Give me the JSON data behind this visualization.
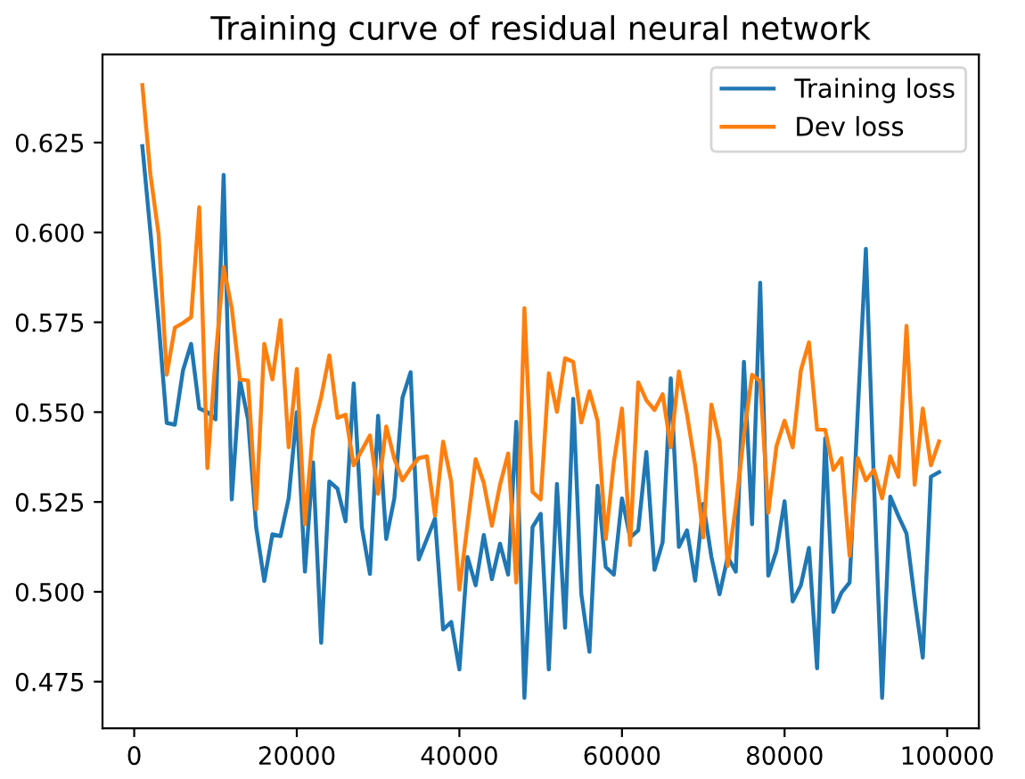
{
  "chart_data": {
    "type": "line",
    "title": "Training curve of residual neural network",
    "x": [
      1000,
      2000,
      3000,
      4000,
      5000,
      6000,
      7000,
      8000,
      9000,
      10000,
      11000,
      12000,
      13000,
      14000,
      15000,
      16000,
      17000,
      18000,
      19000,
      20000,
      21000,
      22000,
      23000,
      24000,
      25000,
      26000,
      27000,
      28000,
      29000,
      30000,
      31000,
      32000,
      33000,
      34000,
      35000,
      36000,
      37000,
      38000,
      39000,
      40000,
      41000,
      42000,
      43000,
      44000,
      45000,
      46000,
      47000,
      48000,
      49000,
      50000,
      51000,
      52000,
      53000,
      54000,
      55000,
      56000,
      57000,
      58000,
      59000,
      60000,
      61000,
      62000,
      63000,
      64000,
      65000,
      66000,
      67000,
      68000,
      69000,
      70000,
      71000,
      72000,
      73000,
      74000,
      75000,
      76000,
      77000,
      78000,
      79000,
      80000,
      81000,
      82000,
      83000,
      84000,
      85000,
      86000,
      87000,
      88000,
      89000,
      90000,
      91000,
      92000,
      93000,
      94000,
      95000,
      96000,
      97000,
      98000,
      99000
    ],
    "series": [
      {
        "name": "Training loss",
        "color": "#1f77b4",
        "values": [
          0.624,
          0.6,
          0.575,
          0.547,
          0.5465,
          0.5616,
          0.569,
          0.551,
          0.55,
          0.548,
          0.616,
          0.5257,
          0.559,
          0.548,
          0.518,
          0.503,
          0.516,
          0.5155,
          0.526,
          0.55,
          0.5056,
          0.536,
          0.4858,
          0.5307,
          0.5287,
          0.5196,
          0.558,
          0.518,
          0.505,
          0.549,
          0.5147,
          0.526,
          0.554,
          0.5611,
          0.509,
          0.5147,
          0.5204,
          0.4895,
          0.4916,
          0.4784,
          0.5097,
          0.5018,
          0.5158,
          0.5035,
          0.5134,
          0.5048,
          0.5473,
          0.4705,
          0.518,
          0.5217,
          0.4784,
          0.53,
          0.49,
          0.5537,
          0.4993,
          0.4833,
          0.5295,
          0.5069,
          0.5048,
          0.526,
          0.5151,
          0.5171,
          0.5389,
          0.5061,
          0.5138,
          0.5594,
          0.5125,
          0.5171,
          0.5031,
          0.5245,
          0.5097,
          0.4993,
          0.5097,
          0.5056,
          0.564,
          0.5188,
          0.586,
          0.5045,
          0.5114,
          0.5252,
          0.4973,
          0.5018,
          0.5122,
          0.4787,
          0.5427,
          0.4944,
          0.4998,
          0.5026,
          0.55,
          0.5954,
          0.53,
          0.4705,
          0.5265,
          0.5211,
          0.5162,
          0.4981,
          0.4817,
          0.532,
          0.5333
        ]
      },
      {
        "name": "Dev loss",
        "color": "#ff7f0e",
        "values": [
          0.641,
          0.616,
          0.5995,
          0.5604,
          0.5735,
          0.5748,
          0.5764,
          0.607,
          0.5344,
          0.565,
          0.5904,
          0.5789,
          0.5591,
          0.5588,
          0.5229,
          0.569,
          0.5591,
          0.5756,
          0.5402,
          0.562,
          0.5188,
          0.5451,
          0.5542,
          0.5658,
          0.5484,
          0.5493,
          0.5352,
          0.5394,
          0.5435,
          0.5273,
          0.546,
          0.537,
          0.531,
          0.5344,
          0.5372,
          0.5377,
          0.5212,
          0.5418,
          0.5306,
          0.5006,
          0.5188,
          0.5369,
          0.5303,
          0.5184,
          0.5298,
          0.5385,
          0.5026,
          0.5789,
          0.5278,
          0.5257,
          0.5608,
          0.5501,
          0.565,
          0.564,
          0.5471,
          0.5558,
          0.5476,
          0.5147,
          0.5361,
          0.551,
          0.513,
          0.5583,
          0.5533,
          0.5506,
          0.555,
          0.5402,
          0.5613,
          0.5493,
          0.5352,
          0.5151,
          0.5521,
          0.5418,
          0.5072,
          0.5237,
          0.5435,
          0.5604,
          0.5586,
          0.522,
          0.5405,
          0.5476,
          0.5402,
          0.5616,
          0.5694,
          0.5451,
          0.5451,
          0.5339,
          0.5372,
          0.51,
          0.5372,
          0.531,
          0.5339,
          0.526,
          0.5377,
          0.532,
          0.574,
          0.5298,
          0.551,
          0.5352,
          0.5418
        ]
      }
    ],
    "xlim": [
      -3900,
      103900
    ],
    "xticks": [
      0,
      20000,
      40000,
      60000,
      80000,
      100000
    ],
    "ylim": [
      0.462,
      0.6495
    ],
    "yticks": [
      0.475,
      {
        "value": 0.5,
        "label": "0.500"
      },
      0.525,
      {
        "value": 0.55,
        "label": "0.550"
      },
      0.575,
      {
        "value": 0.6,
        "label": "0.600"
      },
      0.625
    ],
    "grid": false,
    "legend": "top right"
  }
}
